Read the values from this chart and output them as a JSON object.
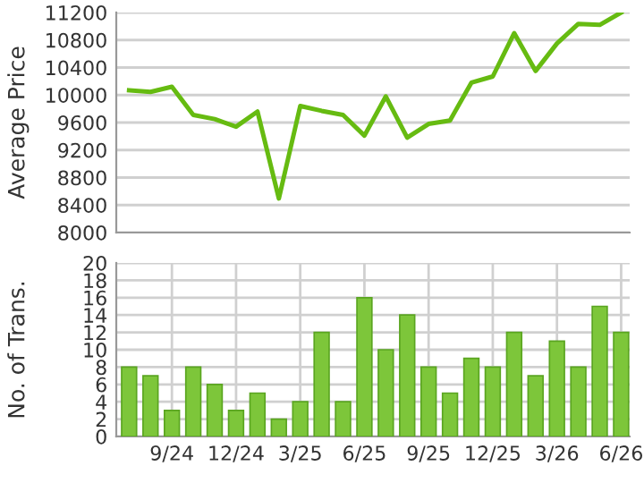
{
  "chart_data": [
    {
      "type": "line",
      "ylabel": "Average Price",
      "categories": [
        null,
        null,
        null,
        null,
        null,
        null,
        null,
        null,
        null,
        null,
        null,
        null,
        null,
        null,
        null,
        null,
        null,
        null,
        null,
        null,
        null,
        null,
        null,
        null
      ],
      "grid": true,
      "tick_labels": "y",
      "ylim": [
        8000,
        11200
      ],
      "yticks": [
        8000,
        8400,
        8800,
        9200,
        9600,
        10000,
        10400,
        10800,
        11200
      ],
      "series": [
        {
          "color": "#66bb11",
          "values": [
            10070,
            10045,
            10120,
            9710,
            9650,
            9540,
            9760,
            8495,
            9840,
            9770,
            9710,
            9410,
            9980,
            9380,
            9580,
            9630,
            10180,
            10270,
            10900,
            10350,
            10750,
            11035,
            11020,
            11200
          ]
        }
      ]
    },
    {
      "type": "bar",
      "ylabel": "No. of Trans.",
      "categories": [
        null,
        null,
        "9/24",
        null,
        null,
        "12/24",
        null,
        null,
        "3/25",
        null,
        null,
        "6/25",
        null,
        null,
        "9/25",
        null,
        null,
        "12/25",
        null,
        null,
        "3/26",
        null,
        null,
        "6/26"
      ],
      "grid": true,
      "ylim": [
        0,
        20
      ],
      "yticks": [
        0,
        2,
        4,
        6,
        8,
        10,
        12,
        14,
        16,
        18,
        20
      ],
      "series": [
        {
          "color": "#7dc63a",
          "values": [
            8,
            7,
            3,
            8,
            6,
            3,
            5,
            2,
            4,
            12,
            4,
            16,
            10,
            14,
            8,
            5,
            9,
            8,
            12,
            7,
            11,
            8,
            15,
            12
          ]
        }
      ]
    }
  ]
}
